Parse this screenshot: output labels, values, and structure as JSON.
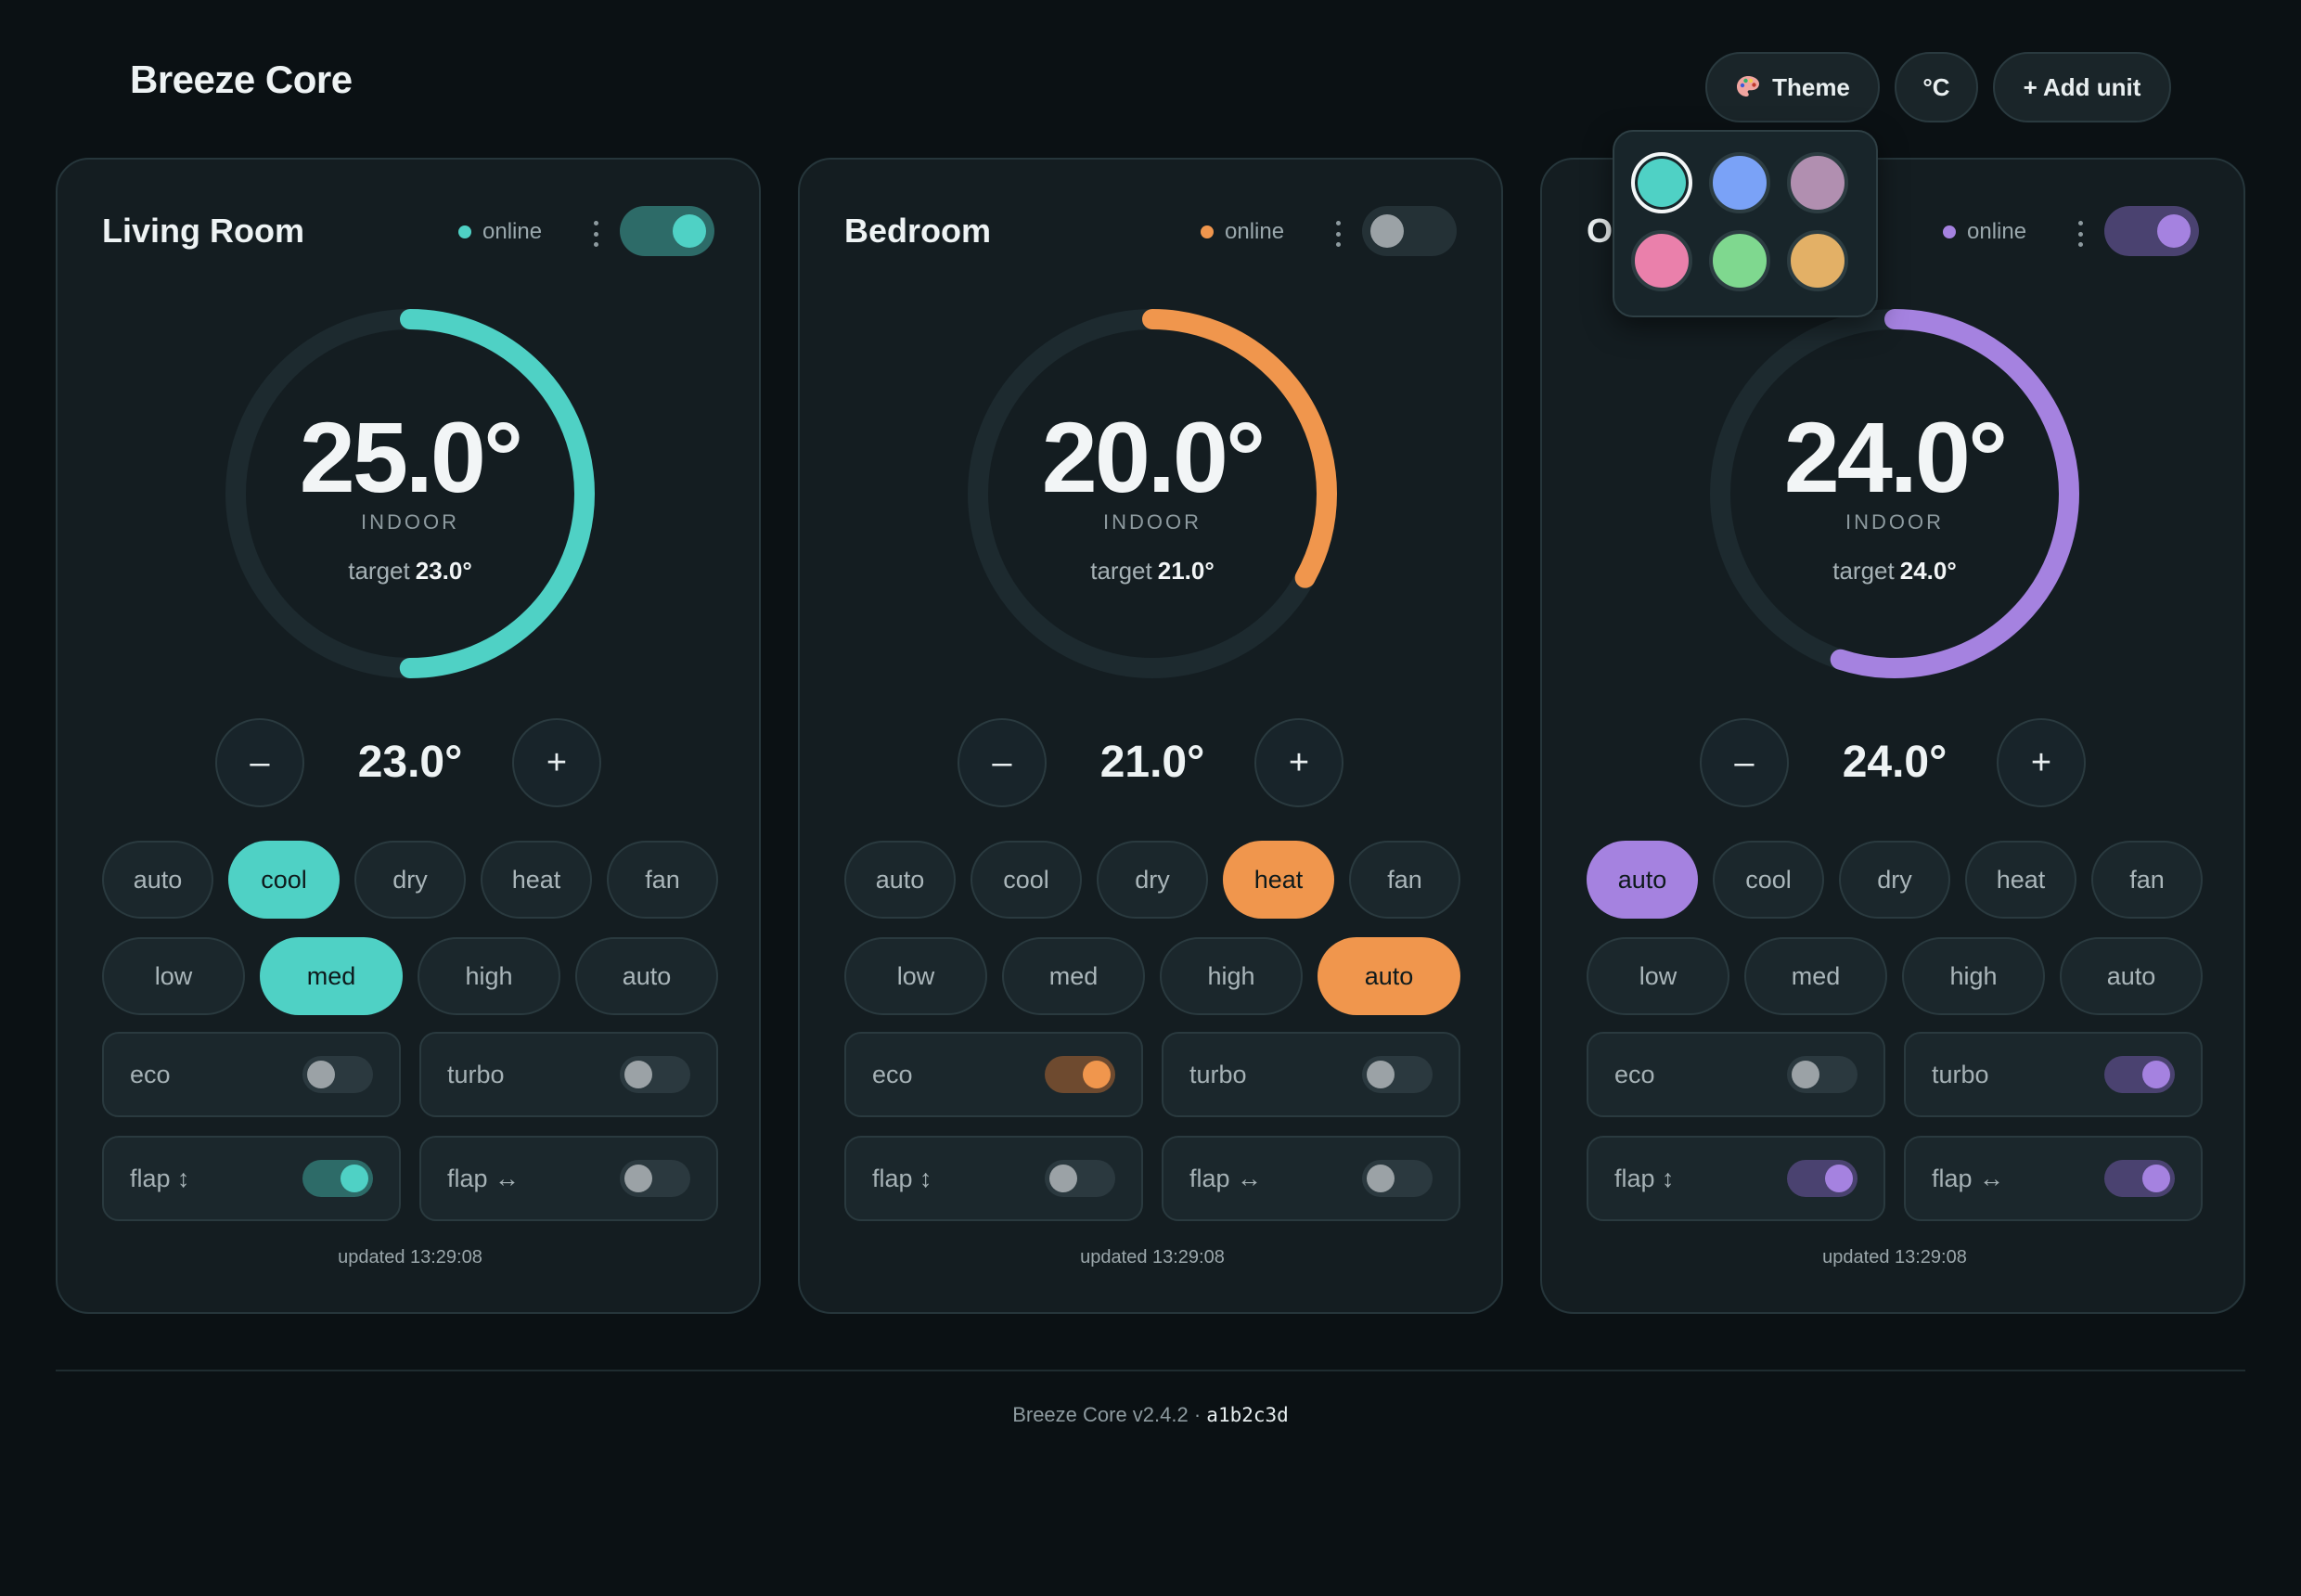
{
  "app": {
    "title": "Breeze Core"
  },
  "header": {
    "theme_label": "Theme",
    "unit_label": "°C",
    "add_label": "+ Add unit"
  },
  "palette": {
    "swatches": [
      "#4fd1c5",
      "#7aa2f7",
      "#b18fb0",
      "#ea80ab",
      "#7fd88f",
      "#e3b066"
    ],
    "selected": 0
  },
  "labels": {
    "indoor": "INDOOR",
    "target": "target",
    "minus": "–",
    "plus": "+"
  },
  "modes": [
    "auto",
    "cool",
    "dry",
    "heat",
    "fan"
  ],
  "fan_speeds": [
    "low",
    "med",
    "high",
    "auto"
  ],
  "options": [
    "eco",
    "turbo",
    "flap ↕",
    "flap ↔"
  ],
  "cards": [
    {
      "name": "Living Room",
      "status": "online",
      "accent": "#4fd1c5",
      "accent_dim": "#2d6b68",
      "power_on": true,
      "indoor": "25.0°",
      "target": "23.0°",
      "setpoint": "23.0°",
      "arc_fraction": 0.5,
      "mode_active": 1,
      "fan_active": 1,
      "opts_on": [
        false,
        false,
        true,
        false
      ],
      "updated": "updated 13:29:08"
    },
    {
      "name": "Bedroom",
      "status": "online",
      "accent": "#f0964d",
      "accent_dim": "#6e4a2f",
      "power_on": false,
      "indoor": "20.0°",
      "target": "21.0°",
      "setpoint": "21.0°",
      "arc_fraction": 0.33,
      "mode_active": 3,
      "fan_active": 3,
      "opts_on": [
        true,
        false,
        false,
        false
      ],
      "updated": "updated 13:29:08"
    },
    {
      "name": "Office",
      "status": "online",
      "accent": "#a582e0",
      "accent_dim": "#4a4270",
      "power_on": true,
      "indoor": "24.0°",
      "target": "24.0°",
      "setpoint": "24.0°",
      "arc_fraction": 0.55,
      "mode_active": 0,
      "fan_active": -1,
      "opts_on": [
        false,
        true,
        true,
        true
      ],
      "updated": "updated 13:29:08"
    }
  ],
  "footer": {
    "text": "Breeze Core v2.4.2 · ",
    "commit": "a1b2c3d"
  }
}
